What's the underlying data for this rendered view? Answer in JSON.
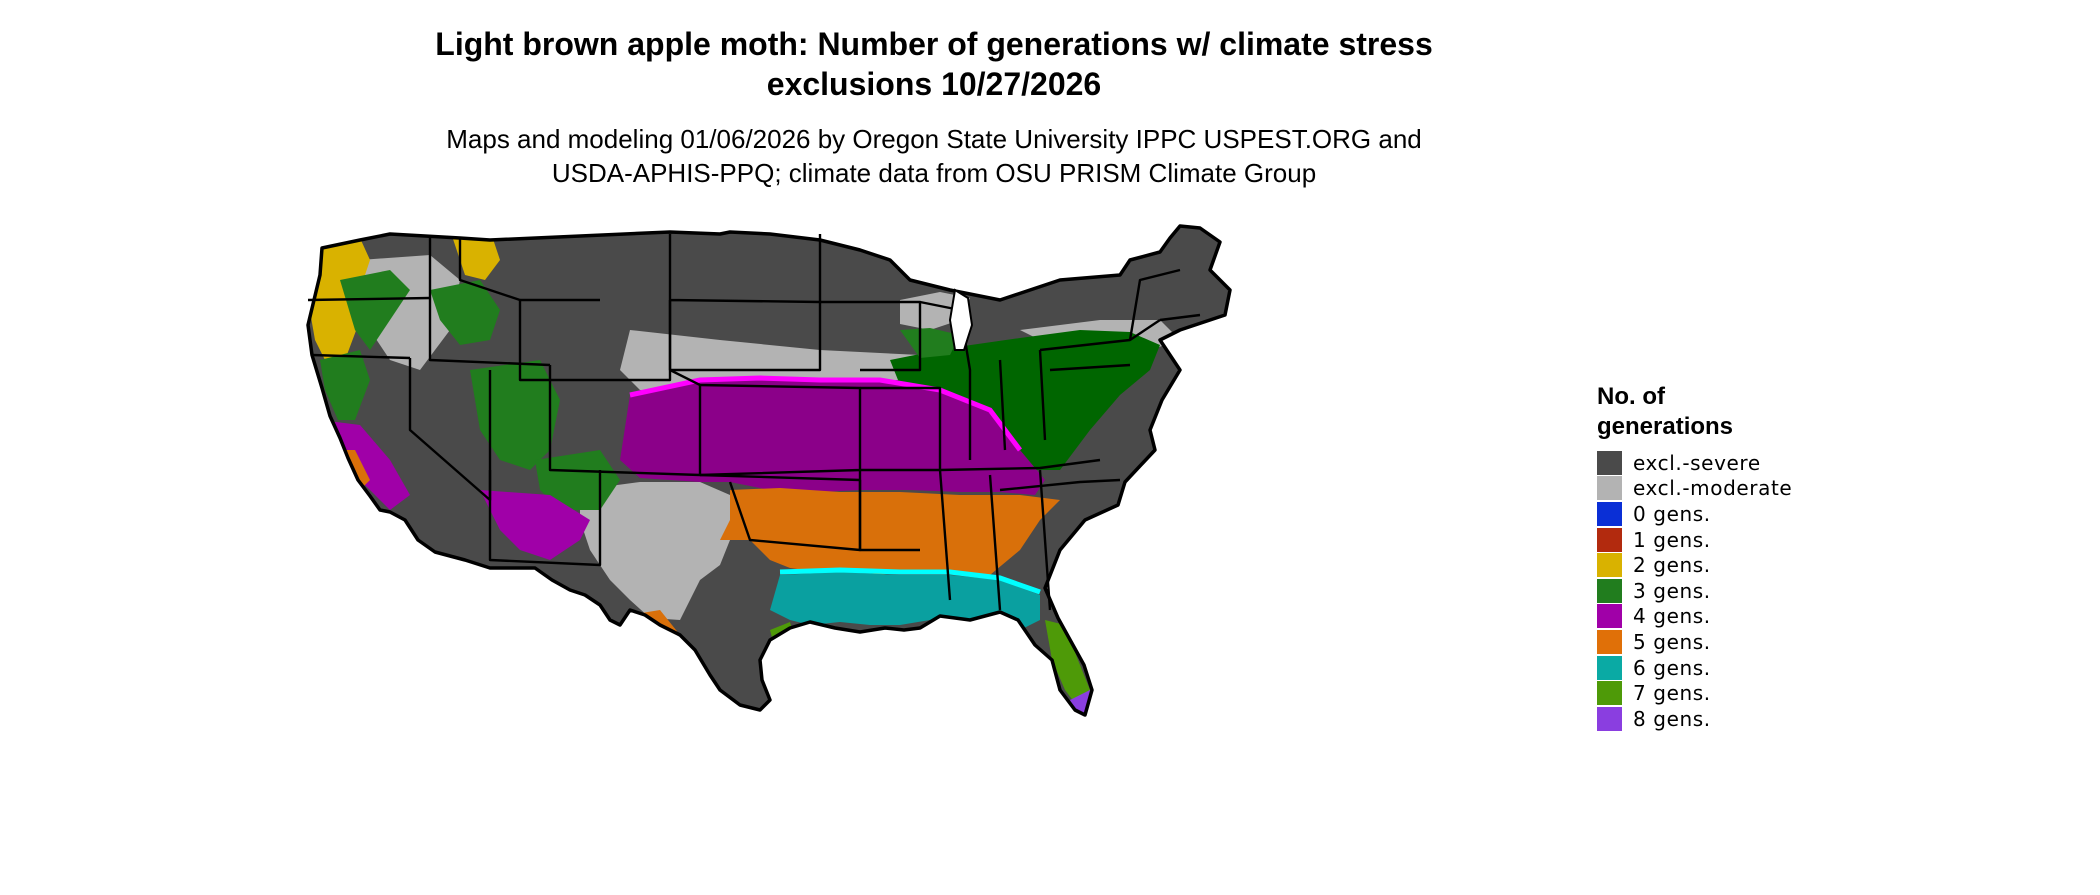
{
  "title": {
    "line1": "Light brown apple moth: Number of generations w/ climate stress",
    "line2": "exclusions 10/27/2026"
  },
  "subtitle": {
    "line1": "Maps and modeling 01/06/2026 by Oregon State University IPPC USPEST.ORG and",
    "line2": "USDA-APHIS-PPQ; climate data from OSU PRISM Climate Group"
  },
  "legend": {
    "title_line1": "No. of",
    "title_line2": "generations",
    "items": [
      {
        "label": "excl.-severe",
        "color": "#4a4a4a"
      },
      {
        "label": "excl.-moderate",
        "color": "#b3b3b3"
      },
      {
        "label": "0 gens.",
        "color": "#0a2fd6"
      },
      {
        "label": "1 gens.",
        "color": "#b22a0e"
      },
      {
        "label": "2 gens.",
        "color": "#d9b200"
      },
      {
        "label": "3 gens.",
        "color": "#217d1e"
      },
      {
        "label": "4 gens.",
        "color": "#a000a8"
      },
      {
        "label": "5 gens.",
        "color": "#e07008"
      },
      {
        "label": "6 gens.",
        "color": "#0aaaa4"
      },
      {
        "label": "7 gens.",
        "color": "#4e9a08"
      },
      {
        "label": "8 gens.",
        "color": "#8a3ee0"
      }
    ]
  },
  "map": {
    "region": "Contiguous United States",
    "colors": {
      "border": "#000000",
      "excl_severe": "#4a4a4a",
      "excl_moderate": "#b3b3b3",
      "gen2": "#d9b200",
      "gen3": "#217d1e",
      "gen3_dark": "#006600",
      "gen4": "#a000a8",
      "gen4_band": "#8b0089",
      "gen4_edge": "#ff00ff",
      "gen5": "#d9700a",
      "gen6": "#0aa0a0",
      "gen6_edge": "#00ffff",
      "gen7": "#4e9a08",
      "gen8": "#8a3ee0",
      "gen1": "#b22a0e"
    }
  }
}
